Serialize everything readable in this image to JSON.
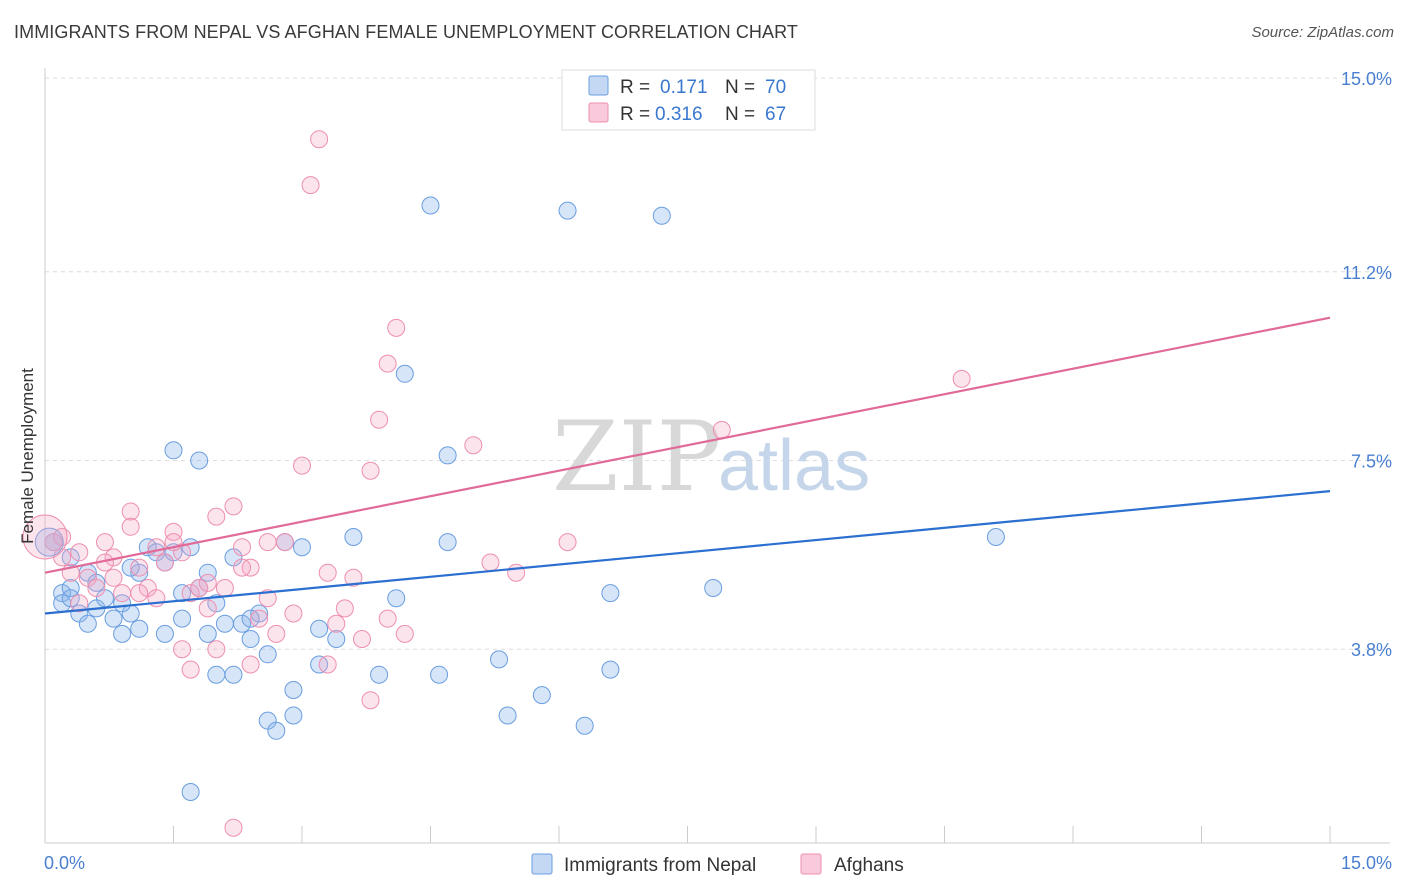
{
  "title": "IMMIGRANTS FROM NEPAL VS AFGHAN FEMALE UNEMPLOYMENT CORRELATION CHART",
  "source": "Source: ZipAtlas.com",
  "watermark": {
    "zip": "ZIP",
    "atlas": "atlas"
  },
  "chart_data": {
    "type": "scatter",
    "title": "IMMIGRANTS FROM NEPAL VS AFGHAN FEMALE UNEMPLOYMENT CORRELATION CHART",
    "xlabel": "",
    "ylabel": "Female Unemployment",
    "xlim": [
      0,
      15
    ],
    "ylim": [
      0,
      15
    ],
    "x_tick_labels": [
      "0.0%",
      "15.0%"
    ],
    "y_ticks": [
      3.8,
      7.5,
      11.2,
      15.0
    ],
    "y_tick_labels": [
      "3.8%",
      "7.5%",
      "11.2%",
      "15.0%"
    ],
    "colors": {
      "nepal": "#6a9ee0",
      "afghans": "#ee8fb0",
      "nepal_line": "#2b6fd0",
      "afghans_line": "#e06a98"
    },
    "legend": [
      {
        "r_label": "R =",
        "r": "0.171",
        "n_label": "N =",
        "n": "70"
      },
      {
        "r_label": "R =",
        "r": "0.316",
        "n_label": "N =",
        "n": "67"
      }
    ],
    "series": [
      {
        "name": "Immigrants from Nepal",
        "trend": {
          "x": [
            0,
            15
          ],
          "y": [
            4.5,
            6.9
          ]
        },
        "points": [
          [
            0.1,
            5.9
          ],
          [
            0.2,
            4.9
          ],
          [
            0.2,
            4.7
          ],
          [
            0.3,
            5.0
          ],
          [
            0.3,
            4.8
          ],
          [
            0.4,
            4.5
          ],
          [
            0.5,
            4.3
          ],
          [
            0.5,
            5.3
          ],
          [
            0.6,
            4.6
          ],
          [
            0.7,
            4.8
          ],
          [
            0.8,
            4.4
          ],
          [
            0.9,
            4.1
          ],
          [
            1.0,
            4.5
          ],
          [
            1.1,
            5.3
          ],
          [
            1.1,
            4.2
          ],
          [
            1.2,
            5.8
          ],
          [
            1.3,
            5.7
          ],
          [
            1.4,
            5.5
          ],
          [
            1.5,
            5.7
          ],
          [
            1.5,
            7.7
          ],
          [
            1.6,
            4.9
          ],
          [
            1.6,
            4.4
          ],
          [
            1.7,
            5.8
          ],
          [
            1.8,
            7.5
          ],
          [
            1.8,
            5.0
          ],
          [
            1.9,
            5.3
          ],
          [
            1.9,
            4.1
          ],
          [
            2.0,
            3.3
          ],
          [
            2.1,
            4.3
          ],
          [
            2.2,
            5.6
          ],
          [
            2.3,
            4.3
          ],
          [
            2.4,
            4.0
          ],
          [
            2.5,
            4.5
          ],
          [
            2.6,
            3.7
          ],
          [
            2.6,
            2.4
          ],
          [
            2.7,
            2.2
          ],
          [
            2.8,
            5.9
          ],
          [
            2.9,
            3.0
          ],
          [
            3.0,
            5.8
          ],
          [
            3.2,
            4.2
          ],
          [
            3.2,
            3.5
          ],
          [
            3.4,
            4.0
          ],
          [
            3.6,
            6.0
          ],
          [
            3.9,
            3.3
          ],
          [
            4.1,
            4.8
          ],
          [
            4.2,
            9.2
          ],
          [
            4.5,
            12.5
          ],
          [
            4.6,
            3.3
          ],
          [
            4.7,
            7.6
          ],
          [
            4.7,
            5.9
          ],
          [
            5.3,
            3.6
          ],
          [
            5.4,
            2.5
          ],
          [
            5.8,
            2.9
          ],
          [
            6.1,
            12.4
          ],
          [
            6.3,
            2.3
          ],
          [
            6.6,
            3.4
          ],
          [
            6.6,
            4.9
          ],
          [
            7.2,
            12.3
          ],
          [
            7.8,
            5.0
          ],
          [
            11.1,
            6.0
          ],
          [
            1.7,
            1.0
          ],
          [
            2.2,
            3.3
          ],
          [
            2.9,
            2.5
          ],
          [
            0.3,
            5.6
          ],
          [
            0.6,
            5.1
          ],
          [
            1.0,
            5.4
          ],
          [
            1.4,
            4.1
          ],
          [
            2.0,
            4.7
          ],
          [
            2.4,
            4.4
          ],
          [
            0.9,
            4.7
          ]
        ]
      },
      {
        "name": "Afghans",
        "trend": {
          "x": [
            0,
            15
          ],
          "y": [
            5.3,
            10.3
          ]
        },
        "points": [
          [
            0.1,
            5.9
          ],
          [
            0.2,
            6.0
          ],
          [
            0.2,
            5.6
          ],
          [
            0.3,
            5.3
          ],
          [
            0.4,
            5.7
          ],
          [
            0.5,
            5.2
          ],
          [
            0.6,
            5.0
          ],
          [
            0.7,
            5.9
          ],
          [
            0.8,
            5.2
          ],
          [
            0.9,
            4.9
          ],
          [
            1.0,
            6.5
          ],
          [
            1.0,
            6.2
          ],
          [
            1.1,
            5.4
          ],
          [
            1.2,
            5.0
          ],
          [
            1.3,
            4.8
          ],
          [
            1.4,
            5.5
          ],
          [
            1.5,
            6.1
          ],
          [
            1.6,
            5.7
          ],
          [
            1.7,
            4.9
          ],
          [
            1.8,
            5.0
          ],
          [
            1.9,
            4.6
          ],
          [
            2.0,
            6.4
          ],
          [
            2.1,
            5.0
          ],
          [
            2.2,
            6.6
          ],
          [
            2.3,
            5.8
          ],
          [
            2.4,
            5.4
          ],
          [
            2.5,
            4.4
          ],
          [
            2.6,
            4.8
          ],
          [
            2.7,
            4.1
          ],
          [
            2.8,
            5.9
          ],
          [
            2.9,
            4.5
          ],
          [
            3.0,
            7.4
          ],
          [
            3.1,
            12.9
          ],
          [
            3.2,
            13.8
          ],
          [
            3.3,
            5.3
          ],
          [
            3.5,
            4.6
          ],
          [
            3.6,
            5.2
          ],
          [
            3.7,
            4.0
          ],
          [
            3.8,
            2.8
          ],
          [
            3.8,
            7.3
          ],
          [
            3.9,
            8.3
          ],
          [
            4.0,
            9.4
          ],
          [
            4.0,
            4.4
          ],
          [
            4.1,
            10.1
          ],
          [
            4.2,
            4.1
          ],
          [
            5.0,
            7.8
          ],
          [
            5.2,
            5.5
          ],
          [
            5.5,
            5.3
          ],
          [
            6.1,
            5.9
          ],
          [
            7.9,
            8.1
          ],
          [
            10.7,
            9.1
          ],
          [
            1.7,
            3.4
          ],
          [
            2.0,
            3.8
          ],
          [
            2.2,
            0.3
          ],
          [
            2.4,
            3.5
          ],
          [
            3.3,
            3.5
          ],
          [
            1.6,
            3.8
          ],
          [
            0.8,
            5.6
          ],
          [
            1.1,
            4.9
          ],
          [
            1.3,
            5.8
          ],
          [
            1.5,
            5.9
          ],
          [
            1.9,
            5.1
          ],
          [
            2.3,
            5.4
          ],
          [
            2.6,
            5.9
          ],
          [
            0.4,
            4.7
          ],
          [
            0.7,
            5.5
          ],
          [
            3.4,
            4.3
          ]
        ]
      }
    ]
  }
}
